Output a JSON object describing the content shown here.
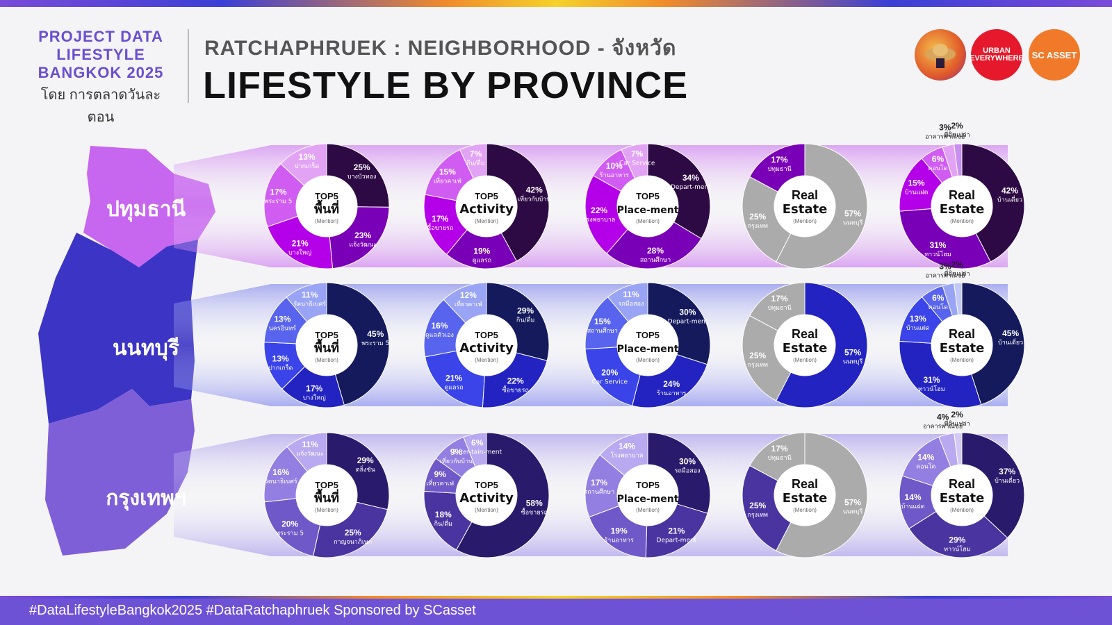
{
  "header": {
    "project_title": "PROJECT DATA LIFESTYLE BANGKOK 2025",
    "project_by": "โดย การตลาดวันละตอน",
    "subtitle": "RATCHAPHRUEK : NEIGHBORHOOD - จังหวัด",
    "title": "LIFESTYLE BY PROVINCE",
    "logos": [
      "URBAN EVERYWHERE",
      "SC ASSET"
    ]
  },
  "footer": {
    "text": "#DataLifestyleBangkok2025 #DataRatchaphruek Sponsored by SCasset"
  },
  "colors": {
    "pathum": [
      "#2e0a45",
      "#7a00b8",
      "#b400e8",
      "#d05cf2",
      "#e3a3f4",
      "#c88ef0"
    ],
    "nonthaburi": [
      "#141a5c",
      "#2323c2",
      "#3a44e8",
      "#5964ee",
      "#9aa4f4",
      "#c2c8f8"
    ],
    "bangkok": [
      "#2a1a6b",
      "#4a34a0",
      "#6f58c8",
      "#937ee2",
      "#b8a9f0",
      "#d4c9f6"
    ],
    "grey": "#ababab"
  },
  "chart_data": [
    {
      "province": "ปทุมธานี",
      "charts": [
        {
          "type": "pie",
          "title": "TOP5",
          "title2": "พื้นที่",
          "note": "(Mention)",
          "slices": [
            {
              "label": "บางบัวทอง",
              "value": 25
            },
            {
              "label": "แจ้งวัฒนะ",
              "value": 23
            },
            {
              "label": "บางใหญ่",
              "value": 21
            },
            {
              "label": "พระราม 5",
              "value": 17
            },
            {
              "label": "ปากเกร็ด",
              "value": 13
            }
          ]
        },
        {
          "type": "pie",
          "title": "TOP5",
          "title2": "Activity",
          "note": "(Mention)",
          "slices": [
            {
              "label": "เที่ยวกับบ้าน",
              "value": 42
            },
            {
              "label": "ดูแลรถ",
              "value": 19
            },
            {
              "label": "ซื้อขายรถ",
              "value": 17
            },
            {
              "label": "เที่ยวคาเฟ่",
              "value": 15
            },
            {
              "label": "กิน/ดื่ม",
              "value": 7
            }
          ]
        },
        {
          "type": "pie",
          "title": "TOP5",
          "title2": "Place-ment",
          "note": "(Mention)",
          "slices": [
            {
              "label": "Depart-ment",
              "value": 34
            },
            {
              "label": "สถานศึกษา",
              "value": 28
            },
            {
              "label": "โรงพยาบาล",
              "value": 22
            },
            {
              "label": "ร้านอาหาร",
              "value": 10
            },
            {
              "label": "Car Service",
              "value": 7
            }
          ]
        },
        {
          "type": "pie",
          "title": "Real",
          "title2": "Estate",
          "note": "(Mention)",
          "slices": [
            {
              "label": "นนทบุรี",
              "value": 57
            },
            {
              "label": "กรุงเทพ",
              "value": 25
            },
            {
              "label": "ปทุมธานี",
              "value": 17
            }
          ]
        },
        {
          "type": "pie",
          "title": "Real",
          "title2": "Estate",
          "note": "(Mention)",
          "slices": [
            {
              "label": "บ้านเดี่ยว",
              "value": 42
            },
            {
              "label": "ทาวน์โฮม",
              "value": 31
            },
            {
              "label": "บ้านแฝด",
              "value": 15
            },
            {
              "label": "คอนโด",
              "value": 6
            },
            {
              "label": "อาคารพาณิชย์",
              "value": 3
            },
            {
              "label": "ที่ดินเปล่า",
              "value": 2
            }
          ]
        }
      ]
    },
    {
      "province": "นนทบุรี",
      "charts": [
        {
          "type": "pie",
          "title": "TOP5",
          "title2": "พื้นที่",
          "note": "(Mention)",
          "slices": [
            {
              "label": "พระราม 5",
              "value": 45
            },
            {
              "label": "บางใหญ่",
              "value": 17
            },
            {
              "label": "ปากเกร็ด",
              "value": 13
            },
            {
              "label": "นครอินทร์",
              "value": 13
            },
            {
              "label": "รัตนาธิเบศร์",
              "value": 11
            }
          ]
        },
        {
          "type": "pie",
          "title": "TOP5",
          "title2": "Activity",
          "note": "(Mention)",
          "slices": [
            {
              "label": "กิน/ดื่ม",
              "value": 29
            },
            {
              "label": "ซื้อขายรถ",
              "value": 22
            },
            {
              "label": "ดูแลรถ",
              "value": 21
            },
            {
              "label": "ดูแลตัวเอง",
              "value": 16
            },
            {
              "label": "เที่ยวคาเฟ่",
              "value": 12
            }
          ]
        },
        {
          "type": "pie",
          "title": "TOP5",
          "title2": "Place-ment",
          "note": "(Mention)",
          "slices": [
            {
              "label": "Depart-ment",
              "value": 30
            },
            {
              "label": "ร้านอาหาร",
              "value": 24
            },
            {
              "label": "Car Service",
              "value": 20
            },
            {
              "label": "สถานศึกษา",
              "value": 15
            },
            {
              "label": "รถมือสอง",
              "value": 11
            }
          ]
        },
        {
          "type": "pie",
          "title": "Real",
          "title2": "Estate",
          "note": "(Mention)",
          "slices": [
            {
              "label": "นนทบุรี",
              "value": 57
            },
            {
              "label": "กรุงเทพ",
              "value": 25
            },
            {
              "label": "ปทุมธานี",
              "value": 17
            }
          ]
        },
        {
          "type": "pie",
          "title": "Real",
          "title2": "Estate",
          "note": "(Mention)",
          "slices": [
            {
              "label": "บ้านเดี่ยว",
              "value": 45
            },
            {
              "label": "ทาวน์โฮม",
              "value": 31
            },
            {
              "label": "บ้านแฝด",
              "value": 13
            },
            {
              "label": "คอนโด",
              "value": 6
            },
            {
              "label": "อาคารพาณิชย์",
              "value": 3
            },
            {
              "label": "ที่ดินเปล่า",
              "value": 2
            }
          ]
        }
      ]
    },
    {
      "province": "กรุงเทพฯ",
      "charts": [
        {
          "type": "pie",
          "title": "TOP5",
          "title2": "พื้นที่",
          "note": "(Mention)",
          "slices": [
            {
              "label": "ตลิ่งชัน",
              "value": 29
            },
            {
              "label": "กาญจนาภิเษก",
              "value": 25
            },
            {
              "label": "พระราม 5",
              "value": 20
            },
            {
              "label": "รัตนาธิเบศร์",
              "value": 16
            },
            {
              "label": "แจ้งวัฒนะ",
              "value": 11
            }
          ]
        },
        {
          "type": "pie",
          "title": "TOP5",
          "title2": "Activity",
          "note": "(Mention)",
          "slices": [
            {
              "label": "ซื้อขายรถ",
              "value": 58
            },
            {
              "label": "กิน/ดื่ม",
              "value": 18
            },
            {
              "label": "เที่ยวคาเฟ่",
              "value": 9
            },
            {
              "label": "เที่ยวกับบ้าน",
              "value": 9
            },
            {
              "label": "Enter-tain-ment",
              "value": 6
            }
          ]
        },
        {
          "type": "pie",
          "title": "TOP5",
          "title2": "Place-ment",
          "note": "(Mention)",
          "slices": [
            {
              "label": "รถมือสอง",
              "value": 30
            },
            {
              "label": "Depart-ment",
              "value": 21
            },
            {
              "label": "ร้านอาหาร",
              "value": 19
            },
            {
              "label": "สถานศึกษา",
              "value": 17
            },
            {
              "label": "โรงพยาบาล",
              "value": 14
            }
          ]
        },
        {
          "type": "pie",
          "title": "Real",
          "title2": "Estate",
          "note": "(Mention)",
          "slices": [
            {
              "label": "นนทบุรี",
              "value": 57
            },
            {
              "label": "กรุงเทพ",
              "value": 25
            },
            {
              "label": "ปทุมธานี",
              "value": 17
            }
          ]
        },
        {
          "type": "pie",
          "title": "Real",
          "title2": "Estate",
          "note": "(Mention)",
          "slices": [
            {
              "label": "บ้านเดี่ยว",
              "value": 37
            },
            {
              "label": "ทาวน์โฮม",
              "value": 29
            },
            {
              "label": "บ้านแฝด",
              "value": 14
            },
            {
              "label": "คอนโด",
              "value": 14
            },
            {
              "label": "อาคารพาณิชย์",
              "value": 4
            },
            {
              "label": "ที่ดินเปล่า",
              "value": 2
            }
          ]
        }
      ]
    }
  ]
}
